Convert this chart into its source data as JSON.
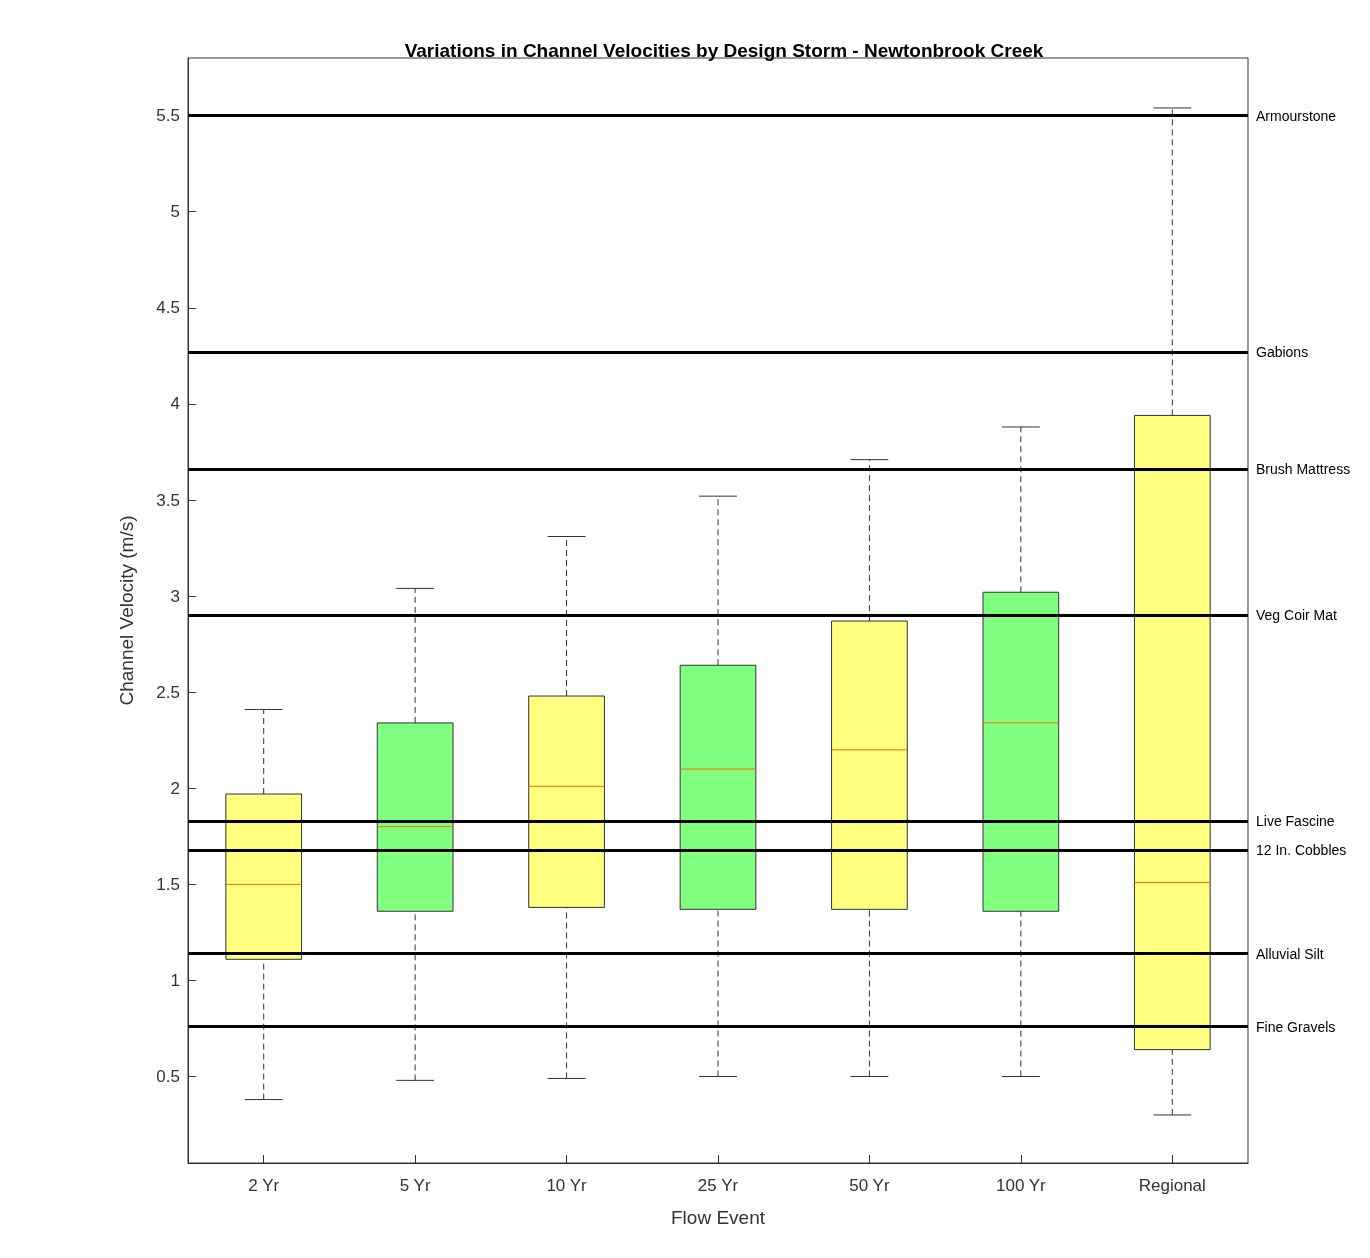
{
  "chart_data": {
    "type": "box",
    "title": "Variations in Channel Velocities by Design Storm - Newtonbrook Creek",
    "xlabel": "Flow Event",
    "ylabel": "Channel Velocity (m/s)",
    "categories": [
      "2 Yr",
      "5 Yr",
      "10 Yr",
      "25 Yr",
      "50 Yr",
      "100 Yr",
      "Regional"
    ],
    "colors": [
      "#ffff80",
      "#80ff80",
      "#ffff80",
      "#80ff80",
      "#ffff80",
      "#80ff80",
      "#ffff80"
    ],
    "boxes": [
      {
        "low": 0.38,
        "q1": 1.11,
        "median": 1.5,
        "q3": 1.97,
        "high": 2.41
      },
      {
        "low": 0.48,
        "q1": 1.36,
        "median": 1.8,
        "q3": 2.34,
        "high": 3.04
      },
      {
        "low": 0.49,
        "q1": 1.38,
        "median": 2.01,
        "q3": 2.48,
        "high": 3.31
      },
      {
        "low": 0.5,
        "q1": 1.37,
        "median": 2.1,
        "q3": 2.64,
        "high": 3.52
      },
      {
        "low": 0.5,
        "q1": 1.37,
        "median": 2.2,
        "q3": 2.87,
        "high": 3.71
      },
      {
        "low": 0.5,
        "q1": 1.36,
        "median": 2.34,
        "q3": 3.02,
        "high": 3.88
      },
      {
        "low": 0.3,
        "q1": 0.64,
        "median": 1.51,
        "q3": 3.94,
        "high": 5.54
      }
    ],
    "ylim": [
      0.05,
      5.8
    ],
    "yticks": [
      0.5,
      1,
      1.5,
      2,
      2.5,
      3,
      3.5,
      4,
      4.5,
      5,
      5.5
    ],
    "grid": false,
    "ref_lines": [
      {
        "axis": "y",
        "value": 5.5,
        "label": "Armourstone",
        "color": "#000000"
      },
      {
        "axis": "y",
        "value": 4.27,
        "label": "Gabions",
        "color": "#000000"
      },
      {
        "axis": "y",
        "value": 3.66,
        "label": "Brush Mattress",
        "color": "#000000"
      },
      {
        "axis": "y",
        "value": 2.9,
        "label": "Veg Coir Mat",
        "color": "#000000"
      },
      {
        "axis": "y",
        "value": 1.83,
        "label": "Live Fascine",
        "color": "#000000"
      },
      {
        "axis": "y",
        "value": 1.68,
        "label": "12 In. Cobbles",
        "color": "#000000"
      },
      {
        "axis": "y",
        "value": 1.14,
        "label": "Alluvial Silt",
        "color": "#000000"
      },
      {
        "axis": "y",
        "value": 0.76,
        "label": "Fine Gravels",
        "color": "#000000"
      }
    ]
  }
}
